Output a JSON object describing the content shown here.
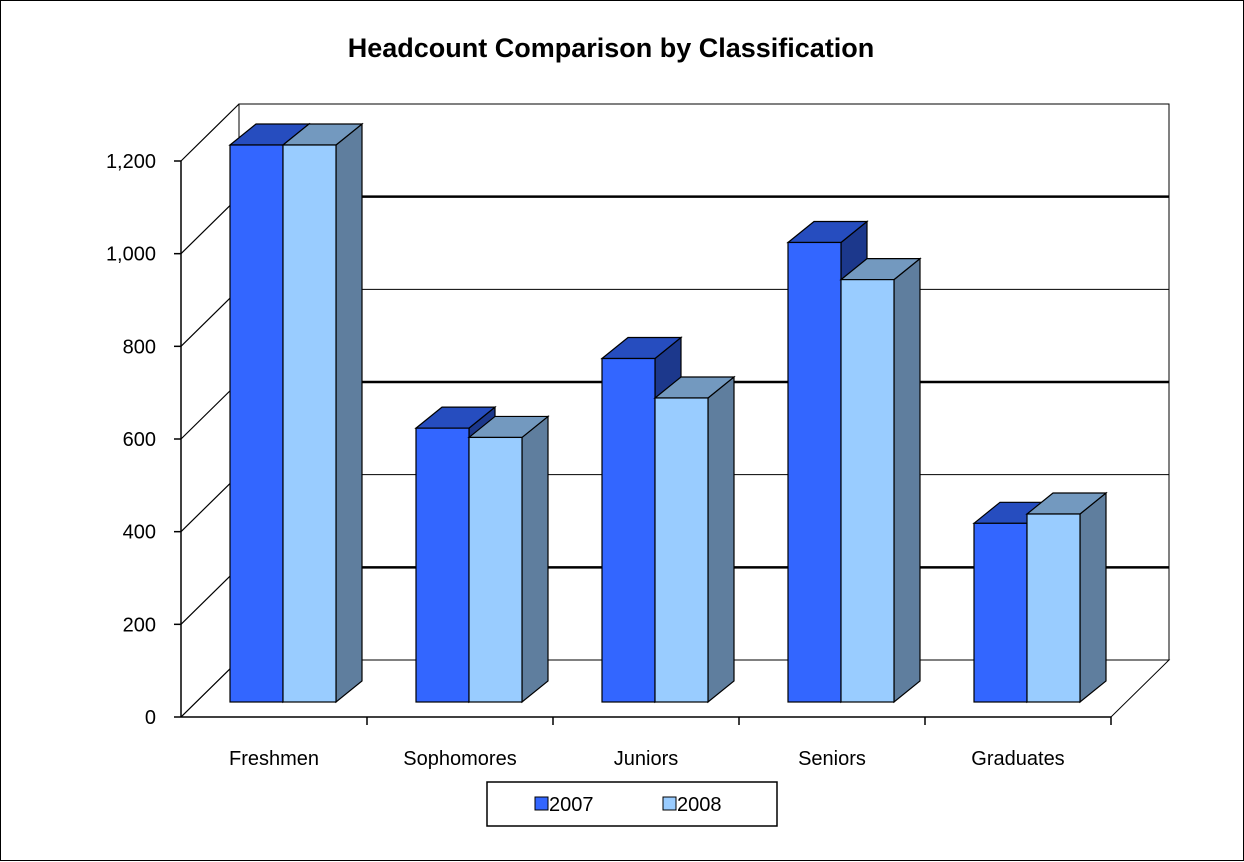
{
  "chart_data": {
    "type": "bar",
    "title": "Headcount Comparison by Classification",
    "xlabel": "",
    "ylabel": "",
    "categories": [
      "Freshmen",
      "Sophomores",
      "Juniors",
      "Seniors",
      "Graduates"
    ],
    "series": [
      {
        "name": "2007",
        "values": [
          1200,
          590,
          740,
          990,
          385
        ],
        "color": "#3366FF"
      },
      {
        "name": "2008",
        "values": [
          1200,
          570,
          655,
          910,
          405
        ],
        "color": "#99CCFF"
      }
    ],
    "ylim": [
      0,
      1200
    ],
    "yticks": [
      0,
      200,
      400,
      600,
      800,
      1000,
      1200
    ],
    "ytick_labels": [
      "0",
      "200",
      "400",
      "600",
      "800",
      "1,000",
      "1,200"
    ],
    "grid": true,
    "legend_position": "bottom",
    "three_d": true
  }
}
